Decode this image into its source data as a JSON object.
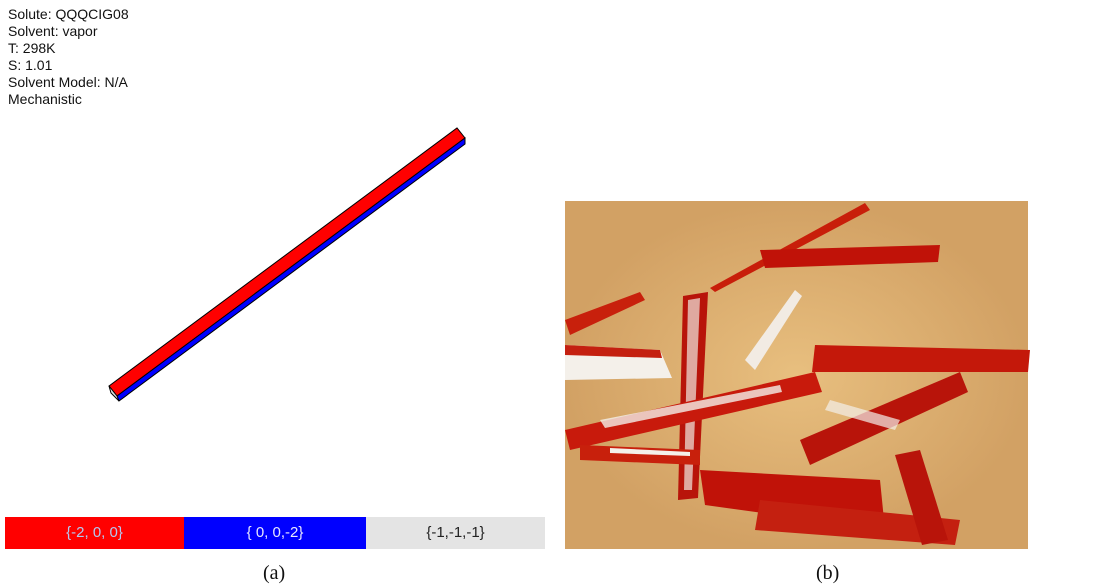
{
  "info": [
    "Solute: QQQCIG08",
    "Solvent: vapor",
    "T: 298K",
    "S: 1.01",
    "Solvent Model: N/A",
    "Mechanistic"
  ],
  "legend": [
    "{-2, 0, 0}",
    "{ 0, 0,-2}",
    "{-1,-1,-1}"
  ],
  "captions": [
    "(a)",
    "(b)"
  ]
}
